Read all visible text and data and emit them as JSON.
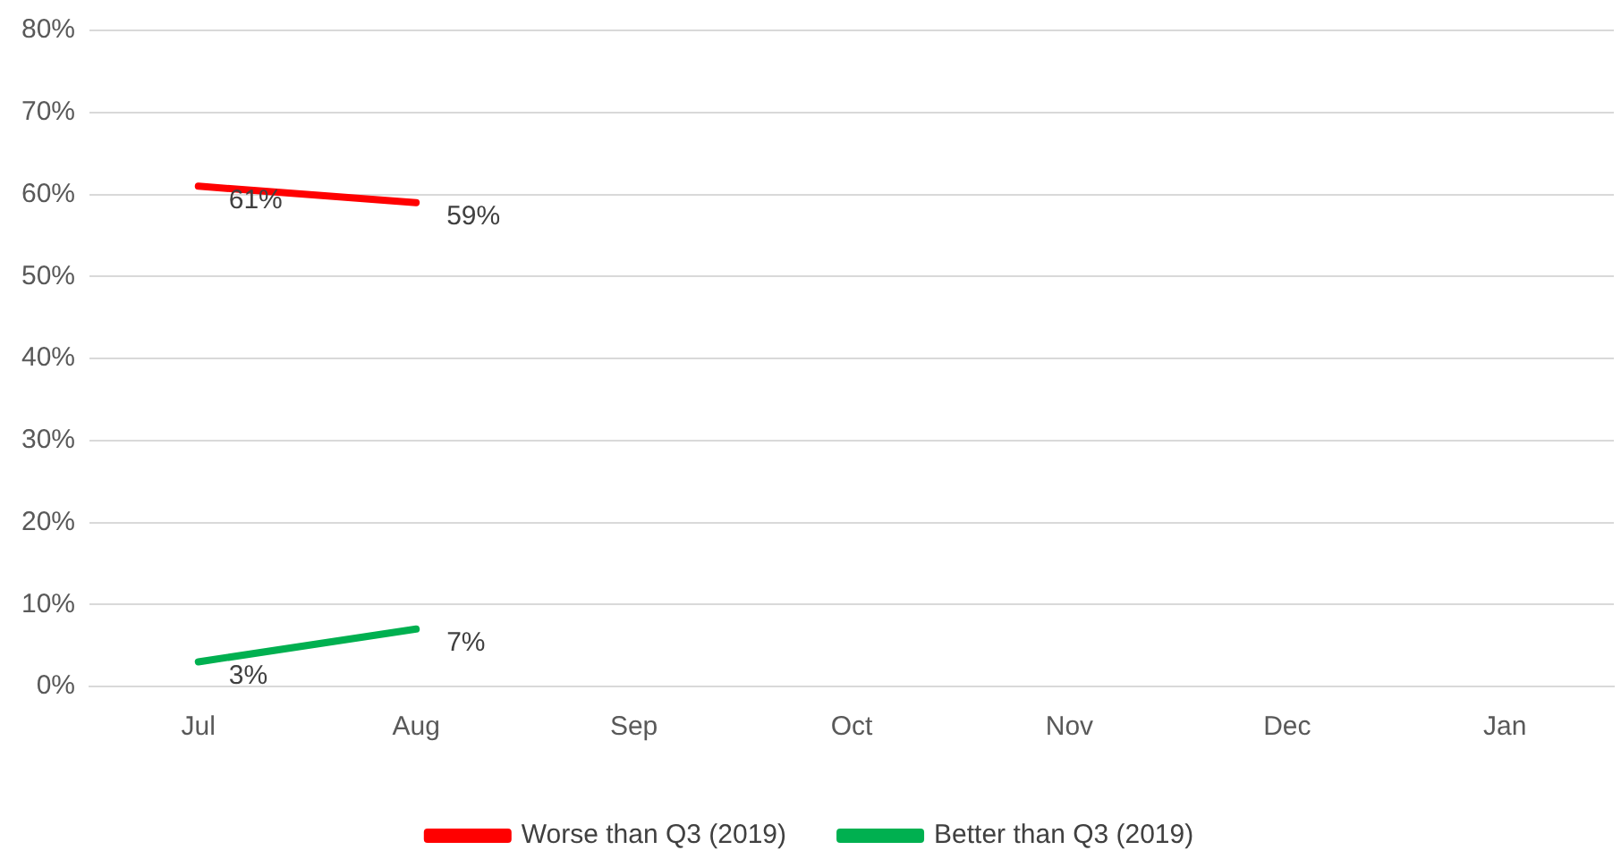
{
  "chart_data": {
    "type": "line",
    "categories": [
      "Jul",
      "Aug",
      "Sep",
      "Oct",
      "Nov",
      "Dec",
      "Jan"
    ],
    "series": [
      {
        "name": "Worse than Q3 (2019)",
        "color": "#ff0000",
        "values": [
          61,
          59,
          null,
          null,
          null,
          null,
          null
        ],
        "value_labels": [
          "61%",
          "59%",
          null,
          null,
          null,
          null,
          null
        ]
      },
      {
        "name": "Better than Q3 (2019)",
        "color": "#00b050",
        "values": [
          3,
          7,
          null,
          null,
          null,
          null,
          null
        ],
        "value_labels": [
          "3%",
          "7%",
          null,
          null,
          null,
          null,
          null
        ]
      }
    ],
    "ylim": [
      0,
      80
    ],
    "yticks": [
      {
        "value": 0,
        "label": "0%"
      },
      {
        "value": 10,
        "label": "10%"
      },
      {
        "value": 20,
        "label": "20%"
      },
      {
        "value": 30,
        "label": "30%"
      },
      {
        "value": 40,
        "label": "40%"
      },
      {
        "value": 50,
        "label": "50%"
      },
      {
        "value": 60,
        "label": "60%"
      },
      {
        "value": 70,
        "label": "70%"
      },
      {
        "value": 80,
        "label": "80%"
      }
    ],
    "grid": "y",
    "legend": "bottom",
    "marker": "none",
    "line_style": "solid"
  }
}
